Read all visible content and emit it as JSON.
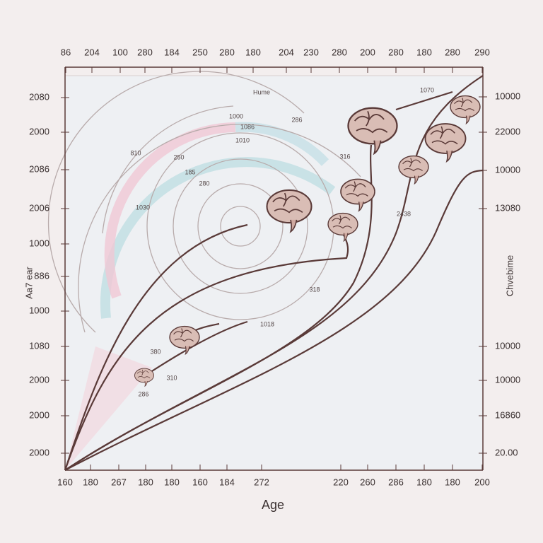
{
  "axes": {
    "top_labels": [
      "86",
      "204",
      "100",
      "280",
      "184",
      "250",
      "280",
      "180",
      "204",
      "230",
      "280",
      "200",
      "280",
      "180",
      "280",
      "290"
    ],
    "bottom_labels": [
      "160",
      "180",
      "267",
      "180",
      "180",
      "160",
      "184",
      "272",
      "220",
      "260",
      "286",
      "180",
      "180",
      "200"
    ],
    "left_labels": [
      "2080",
      "2000",
      "2086",
      "2006",
      "1000",
      "886",
      "1000",
      "1080",
      "2000",
      "2000",
      "2000"
    ],
    "right_labels": [
      "10000",
      "22000",
      "10000",
      "13080",
      "10000",
      "10000",
      "16860",
      "20.00"
    ],
    "x_title": "Age",
    "left_title": "Aa7 ear",
    "right_title": "Chvebime"
  },
  "annotations": [
    "Hume",
    "1000",
    "286",
    "1086",
    "1010",
    "810",
    "250",
    "316",
    "185",
    "280",
    "1030",
    "2438",
    "318",
    "1018",
    "380",
    "310",
    "286",
    "1070"
  ]
}
